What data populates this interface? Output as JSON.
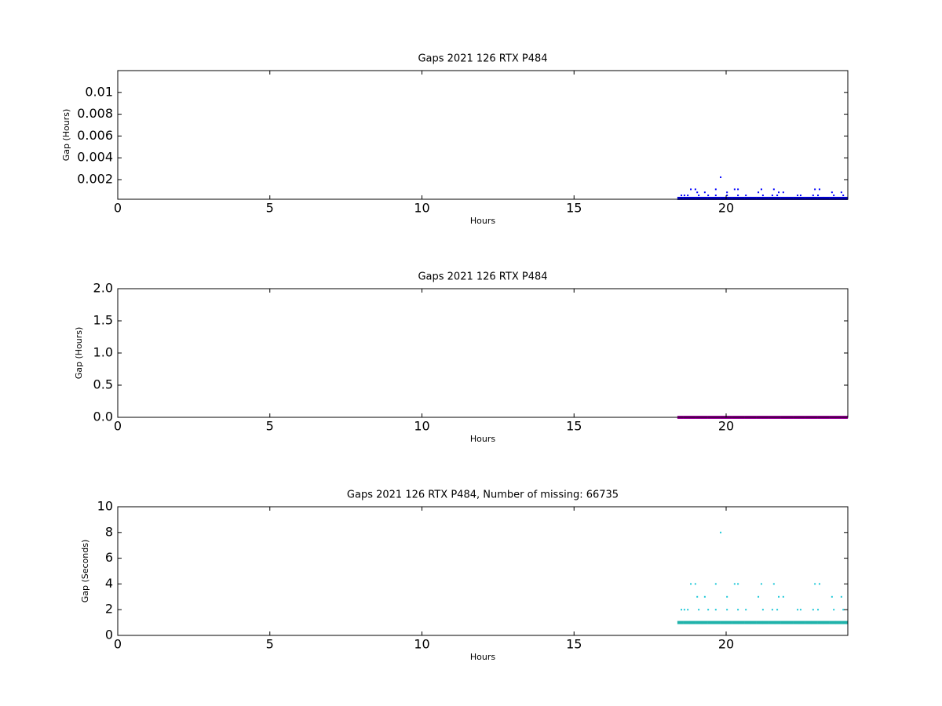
{
  "chart_data": [
    {
      "type": "scatter",
      "title": "Gaps 2021 126 RTX  P484",
      "x_label": "Hours",
      "y_label": "Gap (Hours)",
      "xlim": [
        0,
        24
      ],
      "xticks": [
        0,
        5,
        10,
        15,
        20
      ],
      "ylim": [
        0.0002,
        0.012
      ],
      "yticks": [
        0.002,
        0.004,
        0.006,
        0.008,
        0.01
      ],
      "series": [
        {
          "color": "#0000cc",
          "x": [
            18.5,
            18.7,
            18.9,
            19.1,
            19.3,
            19.5,
            19.7,
            19.9,
            20.1,
            20.3,
            20.5,
            20.7,
            20.9,
            21.1,
            21.3,
            21.5,
            21.7,
            21.9,
            22.1,
            22.3,
            22.5,
            22.7,
            22.9,
            23.1,
            23.3,
            23.5,
            23.7,
            23.9
          ],
          "values": [
            0.000278,
            0.000278,
            0.000278,
            0.000278,
            0.000278,
            0.000278,
            0.000278,
            0.000278,
            0.000278,
            0.000278,
            0.000278,
            0.000278,
            0.000278,
            0.000278,
            0.000278,
            0.000278,
            0.000278,
            0.000278,
            0.000278,
            0.000278,
            0.000278,
            0.000278,
            0.000278,
            0.000278,
            0.000278,
            0.000278,
            0.000278,
            0.000278
          ]
        },
        {
          "color": "#0000ff",
          "x": [
            19.82,
            18.84,
            18.99,
            19.66,
            20.28,
            20.39,
            21.16,
            21.57,
            22.92,
            23.07,
            19.05,
            19.3,
            20.03,
            21.06,
            21.73,
            21.88,
            23.48,
            23.79,
            18.53,
            18.63,
            18.74,
            19.1,
            19.41,
            19.66,
            20.03,
            20.39,
            20.65,
            21.21,
            21.52,
            21.68,
            22.35,
            22.45,
            22.86,
            23.02,
            23.54,
            23.85
          ],
          "values": [
            0.00222,
            0.00111,
            0.00111,
            0.00111,
            0.00111,
            0.00111,
            0.00111,
            0.00111,
            0.00111,
            0.00111,
            0.000833,
            0.000833,
            0.000833,
            0.000833,
            0.000833,
            0.000833,
            0.000833,
            0.000833,
            0.000556,
            0.000556,
            0.000556,
            0.000556,
            0.000556,
            0.000556,
            0.000556,
            0.000556,
            0.000556,
            0.000556,
            0.000556,
            0.000556,
            0.000556,
            0.000556,
            0.000556,
            0.000556,
            0.000556,
            0.000556
          ]
        }
      ]
    },
    {
      "type": "scatter",
      "title": "Gaps 2021 126 RTX  P484",
      "x_label": "Hours",
      "y_label": "Gap (Hours)",
      "xlim": [
        0,
        24
      ],
      "xticks": [
        0,
        5,
        10,
        15,
        20
      ],
      "ylim": [
        0,
        2
      ],
      "yticks": [
        {
          "value": 0,
          "label": "0.0"
        },
        {
          "value": 0.5,
          "label": "0.5"
        },
        {
          "value": 1,
          "label": "1.0"
        },
        {
          "value": 1.5,
          "label": "1.5"
        },
        {
          "value": 2,
          "label": "2.0"
        }
      ],
      "series": [
        {
          "color": "#990099",
          "x": [
            18.5,
            18.7,
            18.9,
            19.1,
            19.3,
            19.5,
            19.7,
            19.9,
            20.1,
            20.3,
            20.5,
            20.7,
            20.9,
            21.1,
            21.3,
            21.5,
            21.7,
            21.9,
            22.1,
            22.3,
            22.5,
            22.7,
            22.9,
            23.1,
            23.3,
            23.5,
            23.7,
            23.9
          ],
          "values": [
            0.000278,
            0.000278,
            0.000278,
            0.000278,
            0.000278,
            0.000278,
            0.000278,
            0.000278,
            0.000278,
            0.000278,
            0.000278,
            0.000278,
            0.000278,
            0.000278,
            0.000278,
            0.000278,
            0.000278,
            0.000278,
            0.000278,
            0.000278,
            0.000278,
            0.000278,
            0.000278,
            0.000278,
            0.000278,
            0.000278,
            0.000278,
            0.000278
          ]
        }
      ]
    },
    {
      "type": "scatter",
      "title": "Gaps 2021 126 RTX  P484, Number of missing: 66735",
      "x_label": "Hours",
      "y_label": "Gap (Seconds)",
      "xlim": [
        0,
        24
      ],
      "xticks": [
        0,
        5,
        10,
        15,
        20
      ],
      "ylim": [
        0,
        10
      ],
      "yticks": [
        0,
        2,
        4,
        6,
        8,
        10
      ],
      "series": [
        {
          "color": "#20b2aa",
          "x": [
            18.5,
            18.7,
            18.9,
            19.1,
            19.3,
            19.5,
            19.7,
            19.9,
            20.1,
            20.3,
            20.5,
            20.7,
            20.9,
            21.1,
            21.3,
            21.5,
            21.7,
            21.9,
            22.1,
            22.3,
            22.5,
            22.7,
            22.9,
            23.1,
            23.3,
            23.5,
            23.7,
            23.9
          ],
          "values": [
            1,
            1,
            1,
            1,
            1,
            1,
            1,
            1,
            1,
            1,
            1,
            1,
            1,
            1,
            1,
            1,
            1,
            1,
            1,
            1,
            1,
            1,
            1,
            1,
            1,
            1,
            1,
            1
          ]
        },
        {
          "color": "#1ec8d8",
          "x": [
            19.82,
            18.84,
            18.99,
            19.66,
            20.28,
            20.39,
            21.16,
            21.57,
            22.92,
            23.07,
            19.05,
            19.3,
            20.03,
            21.06,
            21.73,
            21.88,
            23.48,
            23.79,
            18.53,
            18.63,
            18.74,
            19.1,
            19.41,
            19.66,
            20.03,
            20.39,
            20.65,
            21.21,
            21.52,
            21.68,
            22.35,
            22.45,
            22.86,
            23.02,
            23.54,
            23.85
          ],
          "values": [
            8,
            4,
            4,
            4,
            4,
            4,
            4,
            4,
            4,
            4,
            3,
            3,
            3,
            3,
            3,
            3,
            3,
            3,
            2,
            2,
            2,
            2,
            2,
            2,
            2,
            2,
            2,
            2,
            2,
            2,
            2,
            2,
            2,
            2,
            2,
            2
          ]
        }
      ]
    }
  ]
}
